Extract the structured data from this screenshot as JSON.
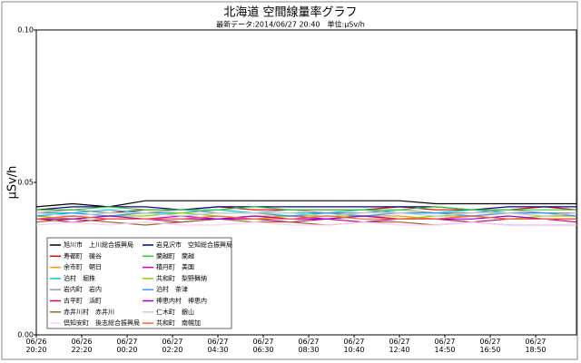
{
  "chart_data": {
    "type": "line",
    "title": "北海道 空間線量率グラフ",
    "subtitle": "最新データ:2014/06/27 20:40　単位:μSv/h",
    "y_label": "μSv/h",
    "x": [
      0,
      0.8,
      1.6,
      2.4,
      3.2,
      4,
      4.8,
      5.6,
      6.4,
      7.2,
      8,
      8.8,
      9.6,
      10.4,
      11.2,
      11.9
    ],
    "xlim": [
      0,
      11.9
    ],
    "xticks": [
      {
        "value": 0,
        "label": [
          "06/26",
          "20:20"
        ]
      },
      {
        "value": 1,
        "label": [
          "06/26",
          "22:20"
        ]
      },
      {
        "value": 2,
        "label": [
          "06/27",
          "00:20"
        ]
      },
      {
        "value": 3,
        "label": [
          "06/27",
          "02:20"
        ]
      },
      {
        "value": 4,
        "label": [
          "06/27",
          "04:30"
        ]
      },
      {
        "value": 5,
        "label": [
          "06/27",
          "06:30"
        ]
      },
      {
        "value": 6,
        "label": [
          "06/27",
          "08:30"
        ]
      },
      {
        "value": 7,
        "label": [
          "06/27",
          "10:40"
        ]
      },
      {
        "value": 8,
        "label": [
          "06/27",
          "12:40"
        ]
      },
      {
        "value": 9,
        "label": [
          "06/27",
          "14:50"
        ]
      },
      {
        "value": 10,
        "label": [
          "06/27",
          "16:50"
        ]
      },
      {
        "value": 11,
        "label": [
          "06/27",
          "18:50"
        ]
      }
    ],
    "ylim": [
      0,
      0.1
    ],
    "yticks": [
      {
        "value": 0,
        "label": "0.00"
      },
      {
        "value": 0.05,
        "label": "0.05"
      },
      {
        "value": 0.1,
        "label": "0.10"
      }
    ],
    "grid": false,
    "legend": "lower-left",
    "series": [
      {
        "name": "旭川市　上川総合振興局",
        "color": "#000000",
        "values": [
          0.042,
          0.043,
          0.042,
          0.044,
          0.044,
          0.044,
          0.044,
          0.044,
          0.044,
          0.044,
          0.044,
          0.043,
          0.043,
          0.043,
          0.043,
          0.043
        ]
      },
      {
        "name": "寿都町　磯谷",
        "color": "#e00000",
        "values": [
          0.041,
          0.041,
          0.04,
          0.041,
          0.041,
          0.042,
          0.041,
          0.041,
          0.041,
          0.041,
          0.042,
          0.041,
          0.041,
          0.041,
          0.042,
          0.041
        ]
      },
      {
        "name": "余市町　朝日",
        "color": "#ff9900",
        "values": [
          0.039,
          0.038,
          0.039,
          0.04,
          0.039,
          0.038,
          0.039,
          0.039,
          0.04,
          0.039,
          0.039,
          0.038,
          0.039,
          0.04,
          0.039,
          0.039
        ]
      },
      {
        "name": "泊村　堀株",
        "color": "#00cccc",
        "values": [
          0.04,
          0.04,
          0.041,
          0.04,
          0.04,
          0.041,
          0.04,
          0.04,
          0.04,
          0.041,
          0.04,
          0.04,
          0.041,
          0.04,
          0.04,
          0.04
        ]
      },
      {
        "name": "岩内町　岩内",
        "color": "#999999",
        "values": [
          0.04,
          0.041,
          0.04,
          0.04,
          0.041,
          0.04,
          0.04,
          0.041,
          0.04,
          0.04,
          0.041,
          0.04,
          0.04,
          0.041,
          0.04,
          0.04
        ]
      },
      {
        "name": "古平町　浜町",
        "color": "#cc0066",
        "values": [
          0.038,
          0.037,
          0.038,
          0.038,
          0.037,
          0.038,
          0.038,
          0.037,
          0.038,
          0.037,
          0.038,
          0.038,
          0.037,
          0.038,
          0.038,
          0.037
        ]
      },
      {
        "name": "赤井川村　赤井川",
        "color": "#996633",
        "values": [
          0.037,
          0.038,
          0.037,
          0.036,
          0.037,
          0.038,
          0.037,
          0.037,
          0.036,
          0.037,
          0.037,
          0.036,
          0.037,
          0.036,
          0.036,
          0.036
        ]
      },
      {
        "name": "倶知安町　後志総合振興局",
        "color": "#ffccff",
        "values": [
          0.036,
          0.037,
          0.036,
          0.037,
          0.036,
          0.036,
          0.037,
          0.036,
          0.036,
          0.037,
          0.036,
          0.036,
          0.037,
          0.036,
          0.036,
          0.036
        ]
      },
      {
        "name": "岩見沢市　空知総合振興局",
        "color": "#000099",
        "values": [
          0.041,
          0.042,
          0.042,
          0.042,
          0.041,
          0.042,
          0.042,
          0.042,
          0.042,
          0.042,
          0.042,
          0.042,
          0.041,
          0.042,
          0.042,
          0.042
        ]
      },
      {
        "name": "蘭越町　蘭越",
        "color": "#33cc33",
        "values": [
          0.041,
          0.041,
          0.042,
          0.041,
          0.041,
          0.041,
          0.042,
          0.041,
          0.041,
          0.041,
          0.041,
          0.042,
          0.041,
          0.041,
          0.041,
          0.041
        ]
      },
      {
        "name": "積丹町　美国",
        "color": "#cc00cc",
        "values": [
          0.038,
          0.039,
          0.038,
          0.038,
          0.039,
          0.038,
          0.038,
          0.039,
          0.038,
          0.039,
          0.038,
          0.038,
          0.039,
          0.038,
          0.038,
          0.038
        ]
      },
      {
        "name": "共和町　梨野舞納",
        "color": "#99cc00",
        "values": [
          0.039,
          0.038,
          0.039,
          0.039,
          0.04,
          0.039,
          0.038,
          0.039,
          0.039,
          0.039,
          0.038,
          0.039,
          0.039,
          0.038,
          0.039,
          0.039
        ]
      },
      {
        "name": "泊村　茶津",
        "color": "#3399ff",
        "values": [
          0.039,
          0.04,
          0.039,
          0.04,
          0.039,
          0.04,
          0.04,
          0.039,
          0.04,
          0.039,
          0.04,
          0.04,
          0.039,
          0.04,
          0.04,
          0.039
        ]
      },
      {
        "name": "神恵内村　神恵内",
        "color": "#9900cc",
        "values": [
          0.038,
          0.038,
          0.039,
          0.038,
          0.038,
          0.038,
          0.039,
          0.038,
          0.038,
          0.039,
          0.038,
          0.038,
          0.038,
          0.039,
          0.038,
          0.038
        ]
      },
      {
        "name": "仁木町　銀山",
        "color": "#cccccc",
        "values": [
          0.04,
          0.039,
          0.04,
          0.04,
          0.039,
          0.04,
          0.04,
          0.04,
          0.039,
          0.04,
          0.04,
          0.039,
          0.04,
          0.04,
          0.039,
          0.04
        ]
      },
      {
        "name": "共和町　南幌加",
        "color": "#ff6633",
        "values": [
          0.038,
          0.039,
          0.038,
          0.038,
          0.038,
          0.039,
          0.038,
          0.038,
          0.039,
          0.038,
          0.038,
          0.038,
          0.039,
          0.038,
          0.038,
          0.038
        ]
      }
    ]
  }
}
